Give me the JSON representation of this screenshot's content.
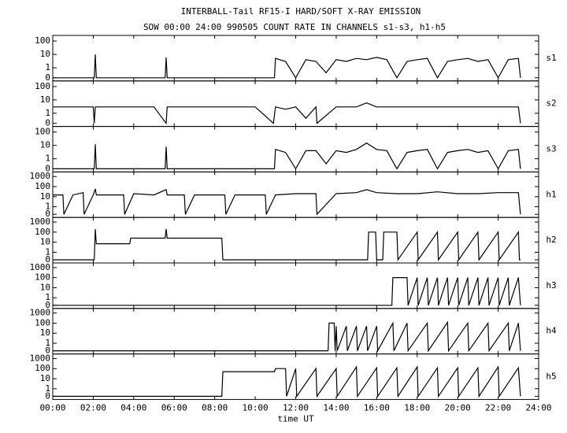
{
  "title": "INTERBALL-Tail RF15-I HARD/SOFT X-RAY EMISSION",
  "subtitle": "SOW 00:00 24:00 990505  COUNT RATE IN CHANNELS s1-s3, h1-h5",
  "chart_data": [
    {
      "type": "line",
      "label": "s1",
      "color": "#000000",
      "xlim": [
        0,
        24
      ],
      "ylim": [
        0,
        200
      ],
      "yscale": "symlog",
      "yticks": [
        0,
        1,
        10,
        100
      ],
      "x": [
        0,
        2.05,
        2.1,
        2.15,
        5.55,
        5.6,
        5.65,
        10.95,
        11,
        11.5,
        12,
        12.5,
        13,
        13.5,
        14,
        14.5,
        15,
        15.5,
        16,
        16.5,
        17,
        17.5,
        18,
        18.5,
        19,
        19.5,
        20,
        20.5,
        21,
        21.5,
        22,
        22.5,
        23,
        23.1
      ],
      "values": [
        0,
        0,
        10,
        0,
        0,
        6,
        0,
        0,
        5,
        3,
        0,
        4,
        3,
        0.5,
        4,
        3,
        5,
        4,
        6,
        4,
        0,
        3,
        4,
        5,
        0,
        3,
        4,
        5,
        3,
        4,
        0,
        4,
        5,
        0
      ]
    },
    {
      "type": "line",
      "label": "s2",
      "color": "#000000",
      "xlim": [
        0,
        24
      ],
      "ylim": [
        0,
        200
      ],
      "yscale": "symlog",
      "yticks": [
        0,
        1,
        10,
        100
      ],
      "x": [
        0,
        1,
        2,
        2.05,
        2.1,
        3,
        4,
        5,
        5.6,
        5.65,
        6,
        7,
        8,
        9,
        10,
        10.9,
        11,
        11.5,
        12,
        12.5,
        13,
        13.05,
        14,
        15,
        15.5,
        16,
        17,
        18,
        19,
        20,
        21,
        22,
        23,
        23.1
      ],
      "values": [
        3,
        3,
        3,
        0,
        3,
        3,
        3,
        3,
        0,
        3,
        3,
        3,
        3,
        3,
        3,
        0,
        3,
        2,
        3,
        0.5,
        3,
        0,
        3,
        3,
        6,
        3,
        3,
        3,
        3,
        3,
        3,
        3,
        3,
        0
      ]
    },
    {
      "type": "line",
      "label": "s3",
      "color": "#000000",
      "xlim": [
        0,
        24
      ],
      "ylim": [
        0,
        200
      ],
      "yscale": "symlog",
      "yticks": [
        0,
        1,
        10,
        100
      ],
      "x": [
        0,
        2.05,
        2.1,
        2.15,
        5.55,
        5.6,
        5.65,
        10.95,
        11,
        11.5,
        12,
        12.5,
        13,
        13.5,
        14,
        14.5,
        15,
        15.5,
        16,
        16.5,
        17,
        17.5,
        18,
        18.5,
        19,
        19.5,
        20,
        20.5,
        21,
        21.5,
        22,
        22.5,
        23,
        23.1
      ],
      "values": [
        0,
        0,
        12,
        0,
        0,
        8,
        0,
        0,
        5,
        3,
        0,
        4,
        4,
        0.5,
        4,
        3,
        5,
        15,
        5,
        4,
        0,
        3,
        4,
        5,
        0,
        3,
        4,
        5,
        3,
        4,
        0,
        4,
        5,
        0
      ]
    },
    {
      "type": "line",
      "label": "h1",
      "color": "#000000",
      "xlim": [
        0,
        24
      ],
      "ylim": [
        0,
        2000
      ],
      "yscale": "symlog",
      "yticks": [
        0,
        1,
        10,
        100,
        1000
      ],
      "x": [
        0,
        0.5,
        0.55,
        1,
        1.5,
        1.55,
        2,
        2.1,
        2.15,
        3,
        3.5,
        3.55,
        4,
        5,
        5.6,
        5.65,
        6,
        6.5,
        6.55,
        7,
        8,
        8.5,
        8.55,
        9,
        10,
        10.5,
        10.55,
        11,
        12,
        13,
        13.05,
        14,
        15,
        15.5,
        16,
        17,
        18,
        19,
        20,
        21,
        22,
        23,
        23.1
      ],
      "values": [
        15,
        15,
        0,
        15,
        25,
        0,
        15,
        60,
        15,
        15,
        15,
        0,
        20,
        15,
        50,
        15,
        15,
        15,
        0,
        15,
        15,
        15,
        0,
        15,
        15,
        15,
        0,
        15,
        20,
        20,
        0,
        20,
        25,
        50,
        25,
        20,
        20,
        30,
        20,
        20,
        25,
        25,
        0
      ]
    },
    {
      "type": "line",
      "label": "h2",
      "color": "#000000",
      "xlim": [
        0,
        24
      ],
      "ylim": [
        0,
        2000
      ],
      "yscale": "symlog",
      "yticks": [
        0,
        1,
        10,
        100,
        1000
      ],
      "x": [
        0,
        2.05,
        2.1,
        2.15,
        3.8,
        3.85,
        5.55,
        5.6,
        5.65,
        8.35,
        8.4,
        15.55,
        15.6,
        15.95,
        16,
        16.3,
        16.35,
        17,
        17.05,
        18,
        18.05,
        19,
        19.05,
        20,
        20.05,
        21,
        21.05,
        22,
        22.05,
        23,
        23.05,
        23.1
      ],
      "values": [
        0,
        0,
        200,
        7,
        7,
        25,
        25,
        200,
        25,
        25,
        0,
        0,
        100,
        100,
        0,
        0,
        100,
        100,
        0,
        100,
        0,
        100,
        0,
        100,
        0,
        100,
        0,
        100,
        0,
        100,
        0,
        0
      ]
    },
    {
      "type": "line",
      "label": "h3",
      "color": "#000000",
      "xlim": [
        0,
        24
      ],
      "ylim": [
        0,
        2000
      ],
      "yscale": "symlog",
      "yticks": [
        0,
        1,
        10,
        100,
        1000
      ],
      "x": [
        0,
        16.75,
        16.8,
        17.5,
        17.55,
        18,
        18.05,
        18.5,
        18.55,
        19,
        19.05,
        19.5,
        19.55,
        20,
        20.05,
        20.5,
        20.55,
        21,
        21.05,
        21.5,
        21.55,
        22,
        22.05,
        22.5,
        22.55,
        23,
        23.1
      ],
      "values": [
        0,
        0,
        100,
        100,
        0,
        100,
        0,
        100,
        0,
        100,
        0,
        100,
        0,
        100,
        0,
        100,
        0,
        100,
        0,
        100,
        0,
        100,
        0,
        100,
        0,
        100,
        0
      ]
    },
    {
      "type": "line",
      "label": "h4",
      "color": "#000000",
      "xlim": [
        0,
        24
      ],
      "ylim": [
        0,
        2000
      ],
      "yscale": "symlog",
      "yticks": [
        0,
        1,
        10,
        100,
        1000
      ],
      "x": [
        0,
        13.6,
        13.65,
        13.9,
        13.95,
        14,
        14.05,
        14.5,
        14.55,
        15,
        15.05,
        15.5,
        15.55,
        16,
        16.05,
        16.8,
        16.85,
        17.5,
        17.55,
        18.5,
        18.55,
        19.5,
        19.55,
        20.5,
        20.55,
        21.5,
        21.55,
        22.5,
        22.55,
        23,
        23.1
      ],
      "values": [
        0,
        0,
        100,
        100,
        0,
        50,
        0,
        50,
        0,
        50,
        0,
        50,
        0,
        50,
        0,
        100,
        0,
        100,
        0,
        100,
        0,
        120,
        0,
        100,
        0,
        100,
        0,
        100,
        0,
        100,
        0
      ]
    },
    {
      "type": "line",
      "label": "h5",
      "color": "#000000",
      "xlim": [
        0,
        24
      ],
      "ylim": [
        0,
        2000
      ],
      "yscale": "symlog",
      "yticks": [
        0,
        1,
        10,
        100,
        1000
      ],
      "xlabel": "time UT",
      "xticks": [
        {
          "value": 0,
          "label": "00:00"
        },
        {
          "value": 2,
          "label": "02:00"
        },
        {
          "value": 4,
          "label": "04:00"
        },
        {
          "value": 6,
          "label": "06:00"
        },
        {
          "value": 8,
          "label": "08:00"
        },
        {
          "value": 10,
          "label": "10:00"
        },
        {
          "value": 12,
          "label": "12:00"
        },
        {
          "value": 14,
          "label": "14:00"
        },
        {
          "value": 16,
          "label": "16:00"
        },
        {
          "value": 18,
          "label": "18:00"
        },
        {
          "value": 20,
          "label": "20:00"
        },
        {
          "value": 22,
          "label": "22:00"
        },
        {
          "value": 24,
          "label": "24:00"
        }
      ],
      "x": [
        0,
        8.35,
        8.4,
        10.95,
        11,
        11.5,
        11.55,
        12,
        12.05,
        13,
        13.05,
        14,
        14.05,
        15,
        15.05,
        16,
        16.05,
        17,
        17.05,
        18,
        18.05,
        19,
        19.05,
        20,
        20.05,
        21,
        21.05,
        22,
        22.05,
        23,
        23.1
      ],
      "values": [
        0,
        0,
        50,
        50,
        100,
        100,
        0,
        100,
        0,
        100,
        0,
        100,
        0,
        150,
        0,
        120,
        0,
        120,
        0,
        150,
        0,
        120,
        0,
        120,
        0,
        120,
        0,
        150,
        0,
        120,
        0
      ]
    }
  ]
}
